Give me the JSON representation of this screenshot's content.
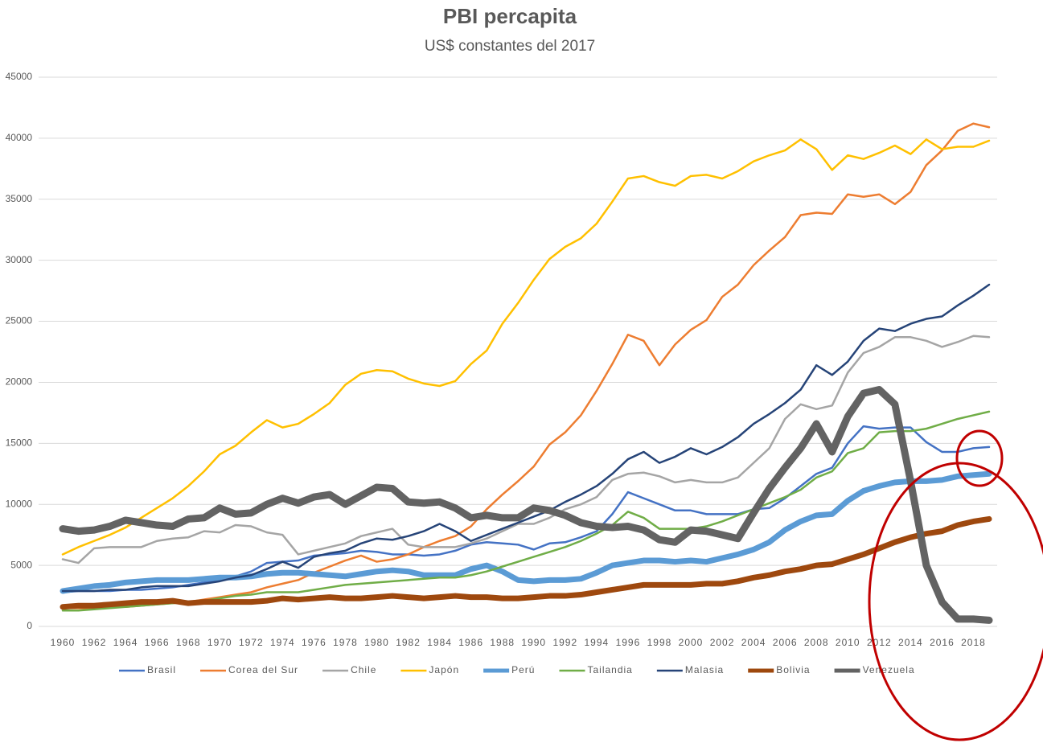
{
  "chart_data": {
    "type": "line",
    "title": "PBI percapita",
    "subtitle": "US$ constantes del 2017",
    "x": [
      1960,
      1961,
      1962,
      1963,
      1964,
      1965,
      1966,
      1967,
      1968,
      1969,
      1970,
      1971,
      1972,
      1973,
      1974,
      1975,
      1976,
      1977,
      1978,
      1979,
      1980,
      1981,
      1982,
      1983,
      1984,
      1985,
      1986,
      1987,
      1988,
      1989,
      1990,
      1991,
      1992,
      1993,
      1994,
      1995,
      1996,
      1997,
      1998,
      1999,
      2000,
      2001,
      2002,
      2003,
      2004,
      2005,
      2006,
      2007,
      2008,
      2009,
      2010,
      2011,
      2012,
      2013,
      2014,
      2015,
      2016,
      2017,
      2018,
      2019
    ],
    "xlim": [
      1960,
      2019
    ],
    "xticks": [
      1960,
      1962,
      1964,
      1966,
      1968,
      1970,
      1972,
      1974,
      1976,
      1978,
      1980,
      1982,
      1984,
      1986,
      1988,
      1990,
      1992,
      1994,
      1996,
      1998,
      2000,
      2002,
      2004,
      2006,
      2008,
      2010,
      2012,
      2014,
      2016,
      2018
    ],
    "ylim": [
      0,
      45000
    ],
    "yticks": [
      0,
      5000,
      10000,
      15000,
      20000,
      25000,
      30000,
      35000,
      40000,
      45000
    ],
    "grid": true,
    "legend": "bottom",
    "series": [
      {
        "name": "Brasil",
        "color": "#4472c4",
        "line_width": 2.5,
        "values": [
          2800,
          2900,
          2900,
          2900,
          3000,
          3000,
          3100,
          3200,
          3400,
          3600,
          3800,
          4100,
          4500,
          5200,
          5300,
          5400,
          5800,
          5900,
          6000,
          6200,
          6100,
          5900,
          5900,
          5800,
          5900,
          6200,
          6700,
          6900,
          6800,
          6700,
          6300,
          6800,
          6900,
          7300,
          7800,
          9200,
          11000,
          10500,
          10000,
          9500,
          9500,
          9200,
          9200,
          9200,
          9600,
          9700,
          10500,
          11500,
          12500,
          13000,
          15000,
          16400,
          16200,
          16300,
          16300,
          15100,
          14300,
          14300,
          14600,
          14700
        ]
      },
      {
        "name": "Corea del Sur",
        "color": "#ed7d31",
        "line_width": 2.5,
        "values": [
          1500,
          1500,
          1500,
          1600,
          1600,
          1700,
          1800,
          1900,
          2000,
          2200,
          2400,
          2600,
          2800,
          3200,
          3500,
          3800,
          4400,
          4900,
          5400,
          5800,
          5300,
          5500,
          5900,
          6500,
          7000,
          7400,
          8200,
          9600,
          10800,
          11900,
          13100,
          14900,
          15900,
          17300,
          19300,
          21500,
          23900,
          23400,
          21400,
          23100,
          24300,
          25100,
          27000,
          28000,
          29600,
          30800,
          31900,
          33700,
          33900,
          33800,
          35400,
          35200,
          35400,
          34600,
          35600,
          37800,
          39000,
          40600,
          41200,
          40900
        ]
      },
      {
        "name": "Chile",
        "color": "#a5a5a5",
        "line_width": 2.5,
        "values": [
          5500,
          5200,
          6400,
          6500,
          6500,
          6500,
          7000,
          7200,
          7300,
          7800,
          7700,
          8300,
          8200,
          7700,
          7500,
          5900,
          6200,
          6500,
          6800,
          7400,
          7700,
          8000,
          6700,
          6500,
          6500,
          6500,
          6800,
          7200,
          7800,
          8400,
          8400,
          8900,
          9600,
          10000,
          10600,
          12000,
          12500,
          12600,
          12300,
          11800,
          12000,
          11800,
          11800,
          12200,
          13400,
          14600,
          17000,
          18200,
          17800,
          18100,
          20800,
          22400,
          22900,
          23700,
          23700,
          23400,
          22900,
          23300,
          23800,
          23700
        ]
      },
      {
        "name": "Japón",
        "color": "#ffc000",
        "line_width": 2.5,
        "values": [
          5900,
          6500,
          7000,
          7500,
          8100,
          8900,
          9700,
          10500,
          11500,
          12700,
          14100,
          14800,
          15900,
          16900,
          16300,
          16600,
          17400,
          18300,
          19800,
          20700,
          21000,
          20900,
          20300,
          19900,
          19700,
          20100,
          21500,
          22600,
          24800,
          26500,
          28400,
          30100,
          31100,
          31800,
          33000,
          34800,
          36700,
          36900,
          36400,
          36100,
          36900,
          37000,
          36700,
          37300,
          38100,
          38600,
          39000,
          39900,
          39100,
          37400,
          38600,
          38300,
          38800,
          39400,
          38700,
          39900,
          39100,
          39300,
          39300,
          39800
        ]
      },
      {
        "name": "Perú",
        "color": "#5b9bd5",
        "line_width": 7,
        "values": [
          2900,
          3100,
          3300,
          3400,
          3600,
          3700,
          3800,
          3800,
          3800,
          3900,
          4000,
          4000,
          4100,
          4300,
          4400,
          4400,
          4300,
          4200,
          4100,
          4300,
          4500,
          4600,
          4500,
          4200,
          4200,
          4200,
          4700,
          5000,
          4500,
          3800,
          3700,
          3800,
          3800,
          3900,
          4400,
          5000,
          5200,
          5400,
          5400,
          5300,
          5400,
          5300,
          5600,
          5900,
          6300,
          6900,
          7900,
          8600,
          9100,
          9200,
          10300,
          11100,
          11500,
          11800,
          11900,
          11900,
          12000,
          12300,
          12400,
          12500
        ]
      },
      {
        "name": "Tailandia",
        "color": "#70ad47",
        "line_width": 2.5,
        "values": [
          1300,
          1300,
          1400,
          1500,
          1600,
          1700,
          1800,
          1900,
          2000,
          2100,
          2300,
          2500,
          2600,
          2800,
          2800,
          2800,
          3000,
          3200,
          3400,
          3500,
          3600,
          3700,
          3800,
          3900,
          4000,
          4000,
          4200,
          4500,
          4900,
          5300,
          5700,
          6100,
          6500,
          7000,
          7600,
          8300,
          9400,
          8900,
          8000,
          8000,
          8000,
          8200,
          8600,
          9100,
          9600,
          10100,
          10600,
          11200,
          12200,
          12700,
          14200,
          14600,
          15900,
          16000,
          16000,
          16200,
          16600,
          17000,
          17300,
          17600
        ]
      },
      {
        "name": "Malasia",
        "color": "#264478",
        "line_width": 2.5,
        "values": [
          2900,
          2900,
          2900,
          3000,
          3000,
          3200,
          3300,
          3300,
          3300,
          3500,
          3700,
          4000,
          4200,
          4700,
          5300,
          4800,
          5700,
          6000,
          6200,
          6800,
          7200,
          7100,
          7400,
          7800,
          8400,
          7800,
          7000,
          7500,
          8000,
          8500,
          9000,
          9500,
          10200,
          10800,
          11500,
          12500,
          13700,
          14300,
          13400,
          13900,
          14600,
          14100,
          14700,
          15500,
          16600,
          17400,
          18300,
          19400,
          21400,
          20600,
          21700,
          23400,
          24400,
          24200,
          24800,
          25200,
          25400,
          26300,
          27100,
          28000
        ]
      },
      {
        "name": "Bolivia",
        "color": "#9e480e",
        "line_width": 7,
        "values": [
          1600,
          1700,
          1700,
          1800,
          1900,
          2000,
          2000,
          2100,
          1900,
          2000,
          2000,
          2000,
          2000,
          2100,
          2300,
          2200,
          2300,
          2400,
          2300,
          2300,
          2400,
          2500,
          2400,
          2300,
          2400,
          2500,
          2400,
          2400,
          2300,
          2300,
          2400,
          2500,
          2500,
          2600,
          2800,
          3000,
          3200,
          3400,
          3400,
          3400,
          3400,
          3500,
          3500,
          3700,
          4000,
          4200,
          4500,
          4700,
          5000,
          5100,
          5500,
          5900,
          6400,
          6900,
          7300,
          7600,
          7800,
          8300,
          8600,
          8800
        ]
      },
      {
        "name": "Venezuela",
        "color": "#636363",
        "line_width": 9,
        "values": [
          8000,
          7800,
          7900,
          8200,
          8700,
          8500,
          8300,
          8200,
          8800,
          8900,
          9700,
          9200,
          9300,
          10000,
          10500,
          10100,
          10600,
          10800,
          10000,
          10700,
          11400,
          11300,
          10200,
          10100,
          10200,
          9700,
          8900,
          9100,
          8900,
          8900,
          9700,
          9500,
          9100,
          8500,
          8200,
          8100,
          8200,
          7900,
          7100,
          6900,
          7900,
          7800,
          7500,
          7200,
          9300,
          11300,
          13000,
          14600,
          16600,
          14300,
          17200,
          19100,
          19400,
          18200,
          11900,
          5000,
          2000,
          600,
          600,
          500
        ]
      }
    ]
  }
}
